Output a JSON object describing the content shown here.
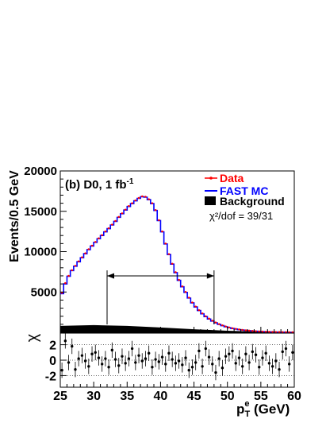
{
  "chart_data": [
    {
      "panel": "main",
      "type": "line",
      "annotation": "(b) D0, 1 fb",
      "annotation_sup": "-1",
      "ylabel": "Events/0.5 GeV",
      "xlim": [
        25,
        60
      ],
      "ylim": [
        0,
        20000
      ],
      "y_ticks": [
        5000,
        10000,
        15000,
        20000
      ],
      "legend": {
        "placement": "top-right",
        "entries": [
          {
            "name": "Data",
            "color": "#ff0000"
          },
          {
            "name": "FAST MC",
            "color": "#0000ff"
          },
          {
            "name": "Background",
            "color": "#000000"
          }
        ]
      },
      "chi2_label": "χ²/dof = 39/31",
      "fit_range": [
        32,
        48
      ],
      "series": [
        {
          "name": "Data",
          "color": "#ff0000",
          "x": [
            25.25,
            25.75,
            26.25,
            26.75,
            27.25,
            27.75,
            28.25,
            28.75,
            29.25,
            29.75,
            30.25,
            30.75,
            31.25,
            31.75,
            32.25,
            32.75,
            33.25,
            33.75,
            34.25,
            34.75,
            35.25,
            35.75,
            36.25,
            36.75,
            37.25,
            37.75,
            38.25,
            38.75,
            39.25,
            39.75,
            40.25,
            40.75,
            41.25,
            41.75,
            42.25,
            42.75,
            43.25,
            43.75,
            44.25,
            44.75,
            45.25,
            45.75,
            46.25,
            46.75,
            47.25,
            47.75,
            48.25,
            48.75,
            49.25,
            49.75,
            50.25,
            50.75,
            51.25,
            51.75,
            52.25,
            52.75,
            53.25,
            53.75,
            54.25,
            54.75,
            55.25,
            55.75,
            56.25,
            56.75,
            57.25,
            57.75,
            58.25,
            58.75,
            59.25,
            59.75
          ],
          "values": [
            4900,
            6100,
            7000,
            7700,
            8250,
            8800,
            9300,
            9800,
            10300,
            10750,
            11200,
            11650,
            12050,
            12500,
            12900,
            13350,
            13800,
            14300,
            14750,
            15200,
            15650,
            16000,
            16350,
            16650,
            16850,
            16800,
            16500,
            16000,
            15150,
            13900,
            12500,
            11000,
            9700,
            8500,
            7450,
            6500,
            5700,
            5000,
            4300,
            3700,
            3200,
            2750,
            2350,
            2000,
            1700,
            1450,
            1220,
            1030,
            870,
            730,
            610,
            510,
            430,
            360,
            300,
            250,
            210,
            175,
            145,
            120,
            100,
            83,
            69,
            57,
            47,
            39,
            32,
            27,
            22,
            18
          ]
        },
        {
          "name": "FAST MC",
          "color": "#0000ff",
          "x": [
            25.25,
            25.75,
            26.25,
            26.75,
            27.25,
            27.75,
            28.25,
            28.75,
            29.25,
            29.75,
            30.25,
            30.75,
            31.25,
            31.75,
            32.25,
            32.75,
            33.25,
            33.75,
            34.25,
            34.75,
            35.25,
            35.75,
            36.25,
            36.75,
            37.25,
            37.75,
            38.25,
            38.75,
            39.25,
            39.75,
            40.25,
            40.75,
            41.25,
            41.75,
            42.25,
            42.75,
            43.25,
            43.75,
            44.25,
            44.75,
            45.25,
            45.75,
            46.25,
            46.75,
            47.25,
            47.75,
            48.25,
            48.75,
            49.25,
            49.75,
            50.25,
            50.75,
            51.25,
            51.75,
            52.25,
            52.75,
            53.25,
            53.75,
            54.25,
            54.75,
            55.25,
            55.75,
            56.25,
            56.75,
            57.25,
            57.75,
            58.25,
            58.75,
            59.25,
            59.75
          ],
          "values": [
            4800,
            6000,
            6950,
            7650,
            8200,
            8750,
            9250,
            9750,
            10250,
            10700,
            11150,
            11600,
            12000,
            12450,
            12850,
            13300,
            13750,
            14250,
            14700,
            15150,
            15600,
            15950,
            16300,
            16600,
            16800,
            16750,
            16450,
            15950,
            15100,
            13850,
            12450,
            10950,
            9650,
            8450,
            7400,
            6450,
            5650,
            4950,
            4250,
            3650,
            3150,
            2700,
            2300,
            1950,
            1650,
            1400,
            1180,
            990,
            830,
            700,
            580,
            490,
            410,
            340,
            285,
            240,
            200,
            165,
            138,
            115,
            95,
            79,
            66,
            54,
            45,
            37,
            31,
            26,
            21,
            17
          ]
        },
        {
          "name": "Background",
          "color": "#000000",
          "x": [
            25,
            30,
            35,
            40,
            45,
            50,
            55,
            60
          ],
          "values": [
            800,
            900,
            800,
            600,
            380,
            200,
            90,
            40
          ]
        }
      ]
    },
    {
      "panel": "residual",
      "type": "scatter",
      "ylabel": "χ",
      "xlabel": "p",
      "xlabel_sup": "e",
      "xlabel_sub": "T",
      "xlabel_unit": " (GeV)",
      "xlim": [
        25,
        60
      ],
      "ylim": [
        -3.5,
        3.5
      ],
      "x_ticks": [
        25,
        30,
        35,
        40,
        45,
        50,
        55,
        60
      ],
      "y_ticks": [
        -2,
        0,
        2
      ],
      "reference_lines": [
        -2,
        0,
        2
      ],
      "x": [
        25.25,
        25.75,
        26.25,
        26.75,
        27.25,
        27.75,
        28.25,
        28.75,
        29.25,
        29.75,
        30.25,
        30.75,
        31.25,
        31.75,
        32.25,
        32.75,
        33.25,
        33.75,
        34.25,
        34.75,
        35.25,
        35.75,
        36.25,
        36.75,
        37.25,
        37.75,
        38.25,
        38.75,
        39.25,
        39.75,
        40.25,
        40.75,
        41.25,
        41.75,
        42.25,
        42.75,
        43.25,
        43.75,
        44.25,
        44.75,
        45.25,
        45.75,
        46.25,
        46.75,
        47.25,
        47.75,
        48.25,
        48.75,
        49.25,
        49.75,
        50.25,
        50.75,
        51.25,
        51.75,
        52.25,
        52.75,
        53.25,
        53.75,
        54.25,
        54.75,
        55.25,
        55.75,
        56.25,
        56.75,
        57.25,
        57.75,
        58.25,
        58.75,
        59.25,
        59.75
      ],
      "values": [
        -1.3,
        2.5,
        -0.3,
        1.8,
        -1.2,
        0.2,
        0.6,
        -0.1,
        -0.8,
        0.8,
        1.0,
        0.3,
        -0.5,
        0.2,
        -0.9,
        1.3,
        0.1,
        -0.7,
        0.5,
        -0.4,
        0.2,
        1.5,
        -0.3,
        0.6,
        -0.1,
        0.2,
        0.9,
        -0.9,
        0.1,
        -0.2,
        0.4,
        -0.5,
        0.9,
        0.1,
        -0.4,
        -0.1,
        -0.6,
        0.3,
        -1.3,
        -0.9,
        -0.3,
        1.2,
        -0.8,
        1.5,
        0.4,
        -0.5,
        -1.6,
        0.2,
        -1.0,
        0.5,
        0.8,
        1.2,
        -0.4,
        0.3,
        -0.8,
        0.8,
        -0.3,
        1.1,
        0.7,
        -0.9,
        0.3,
        0.9,
        -0.4,
        -0.8,
        -0.1,
        -1.2,
        1.1,
        1.5,
        -0.5,
        1.0
      ]
    }
  ]
}
